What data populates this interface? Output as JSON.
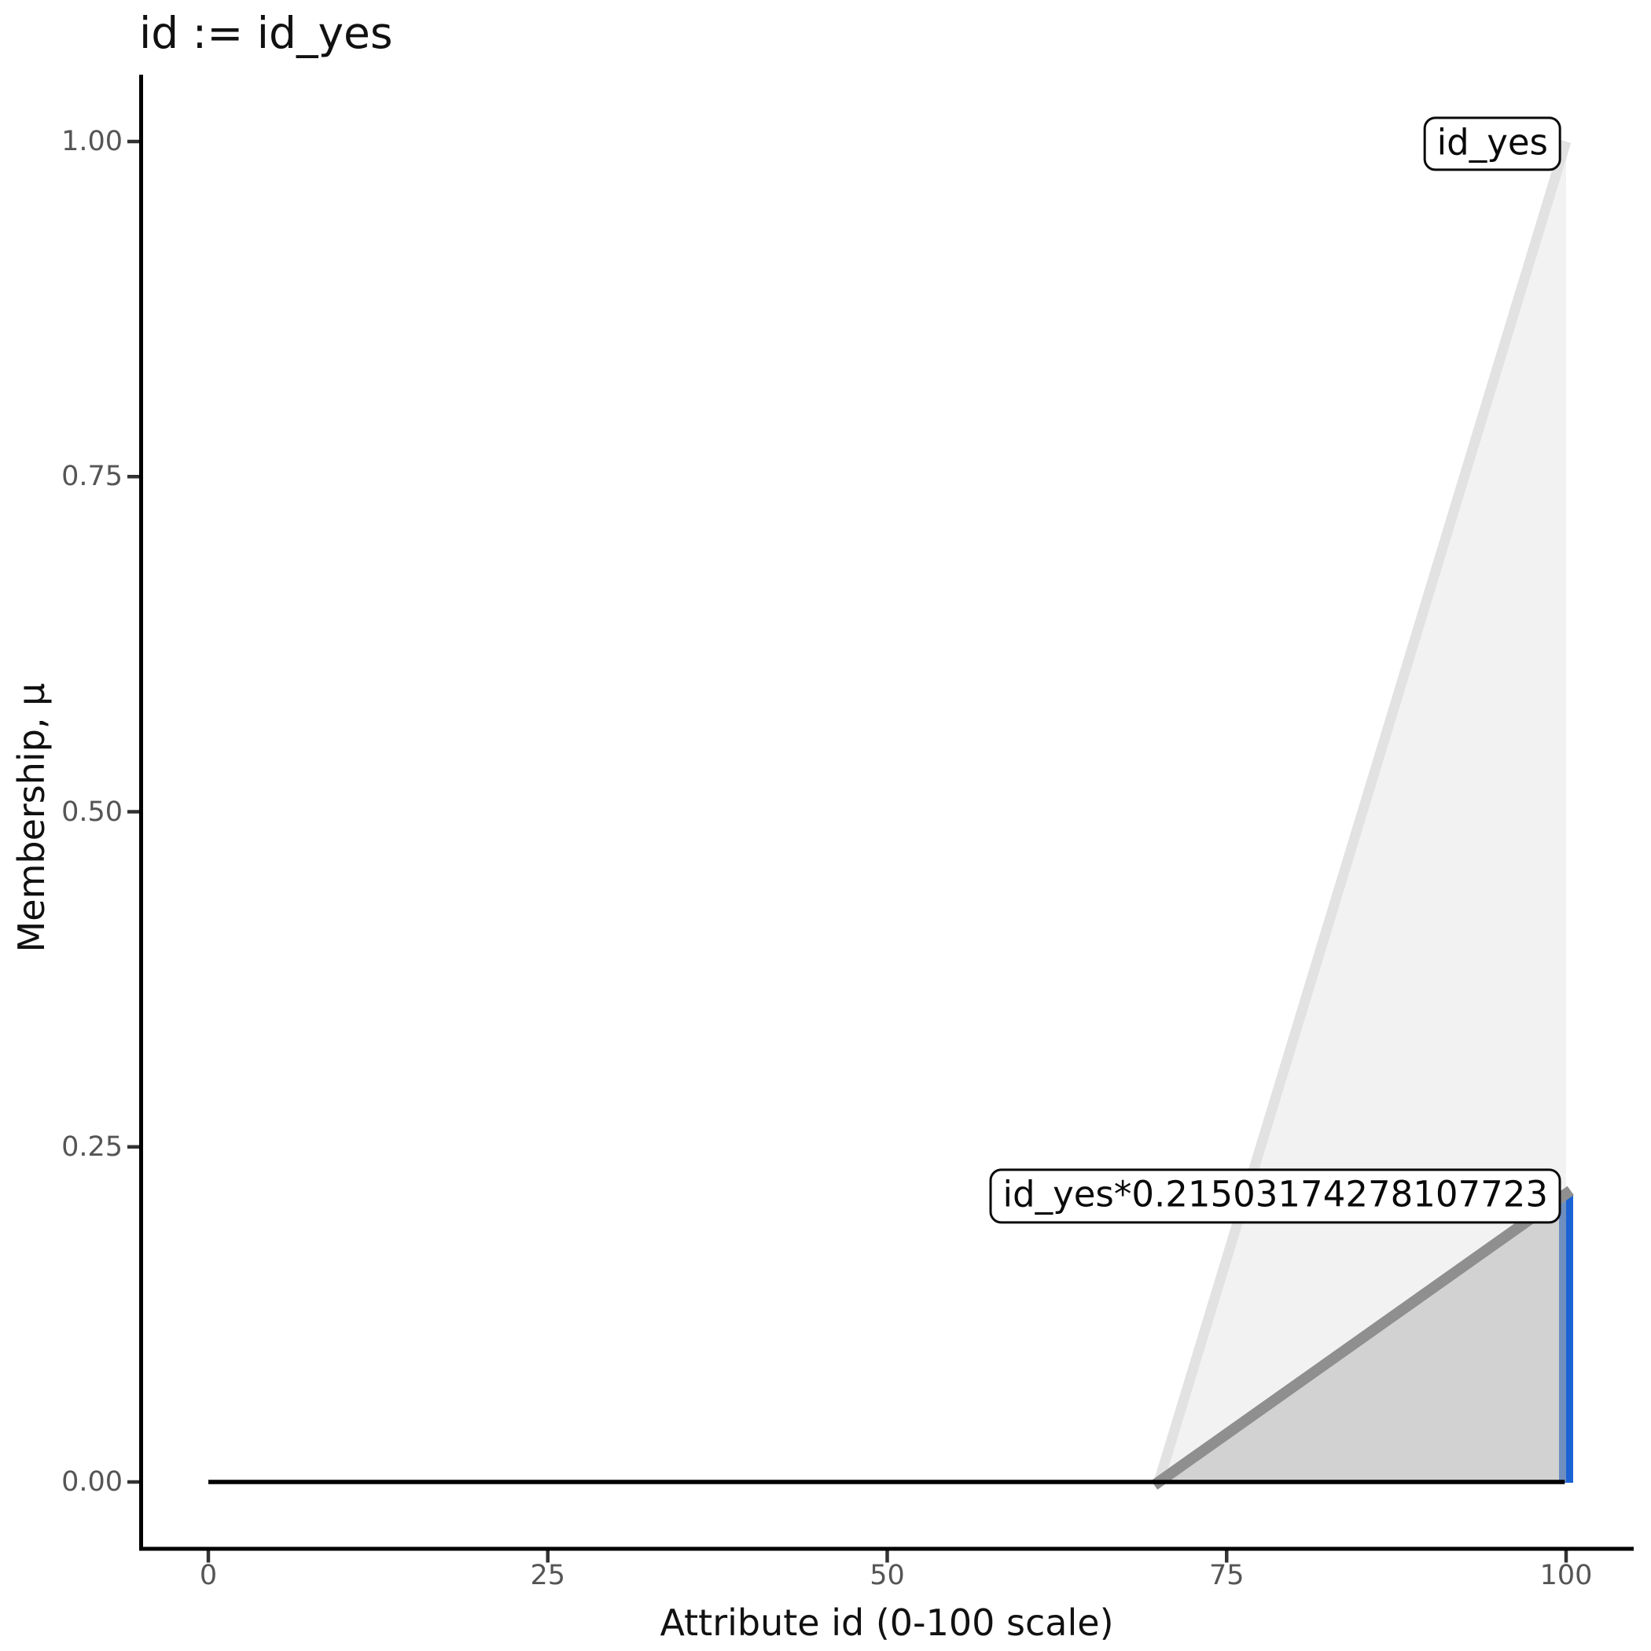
{
  "chart_data": {
    "type": "area",
    "title": "id := id_yes",
    "xlabel": "Attribute id (0-100 scale)",
    "ylabel": "Membership, μ",
    "xlim": [
      -5,
      105
    ],
    "ylim": [
      -0.05,
      1.05
    ],
    "grid": false,
    "legend": "none (boxed inline labels at line apexes)",
    "xticks": [
      {
        "value": 0,
        "label": "0"
      },
      {
        "value": 25,
        "label": "25"
      },
      {
        "value": 50,
        "label": "50"
      },
      {
        "value": 75,
        "label": "75"
      },
      {
        "value": 100,
        "label": "100"
      }
    ],
    "yticks": [
      {
        "value": 0.0,
        "label": "0.00"
      },
      {
        "value": 0.25,
        "label": "0.25"
      },
      {
        "value": 0.5,
        "label": "0.50"
      },
      {
        "value": 0.75,
        "label": "0.75"
      },
      {
        "value": 1.0,
        "label": "1.00"
      }
    ],
    "series": [
      {
        "id": "activation-bar",
        "name": "defuzzification activation bar",
        "type": "vline",
        "x": 100,
        "y0": 0,
        "y1": 0.21503174278107723,
        "color": "#1b63d4"
      },
      {
        "id": "id_yes",
        "name": "id_yes membership function",
        "type": "segment",
        "points": [
          [
            70,
            0
          ],
          [
            100,
            1
          ]
        ],
        "close_to_zero_at_x": 100,
        "line_color": "#e2e2e2",
        "fill_color": "rgba(217,217,217,0.35)"
      },
      {
        "id": "id_yes_scaled",
        "name": "id_yes scaled by rule firing strength",
        "type": "segment",
        "points": [
          [
            70,
            0
          ],
          [
            100,
            0.21503174278107723
          ]
        ],
        "close_to_zero_at_x": 100,
        "line_color": "#8f8f8f",
        "fill_color": "rgba(147,147,147,0.33)"
      },
      {
        "id": "baseline",
        "name": "zero-membership baseline",
        "type": "segment",
        "points": [
          [
            0,
            0
          ],
          [
            99.9,
            0
          ]
        ],
        "line_color": "#000000"
      }
    ],
    "annotations": [
      {
        "id": "label-id_yes",
        "text": "id_yes",
        "x": 100,
        "y": 1.0
      },
      {
        "id": "label-id_yes-scaled",
        "text": "id_yes*0.21503174278107723",
        "x": 100,
        "y": 0.21503174278107723
      }
    ],
    "colors": {
      "activation_blue": "#1b63d4",
      "membership_light_gray": "#e2e2e2",
      "scaled_gray": "#8f8f8f",
      "axis_black": "#000000",
      "tick_label_gray": "#555555"
    }
  }
}
